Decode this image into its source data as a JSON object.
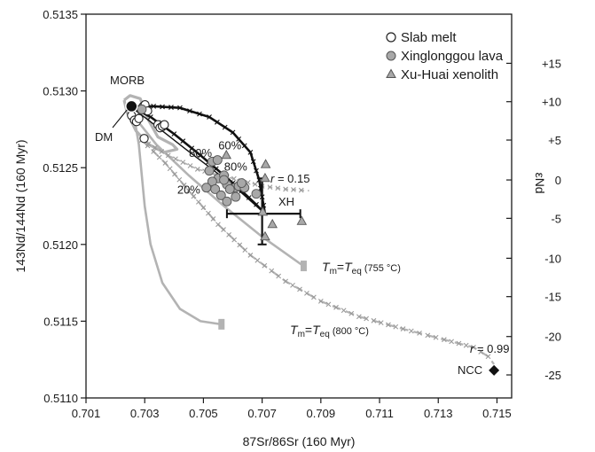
{
  "chart_data": {
    "type": "scatter",
    "xlabel": "87Sr/86Sr (160 Myr)",
    "ylabel": "143Nd/144Nd (160 Myr)",
    "y2label": "εNd",
    "xlim": [
      0.701,
      0.7155
    ],
    "ylim": [
      0.511,
      0.5135
    ],
    "xticks": [
      0.701,
      0.703,
      0.705,
      0.707,
      0.709,
      0.711,
      0.713,
      0.715
    ],
    "xtick_labels": [
      "0.701",
      "0.703",
      "0.705",
      "0.707",
      "0.709",
      "0.711",
      "0.713",
      "0.715"
    ],
    "yticks": [
      0.511,
      0.5115,
      0.512,
      0.5125,
      0.513,
      0.5135
    ],
    "ytick_labels": [
      "0.5110",
      "0.5115",
      "0.5120",
      "0.5125",
      "0.5130",
      "0.5135"
    ],
    "y2ticks": [
      {
        "value": 0.51293,
        "label": "+10"
      },
      {
        "value": 0.51268,
        "label": "+5"
      },
      {
        "value": 0.51242,
        "label": "0"
      },
      {
        "value": 0.51217,
        "label": "-5"
      },
      {
        "value": 0.51191,
        "label": "-10"
      },
      {
        "value": 0.51166,
        "label": "-15"
      },
      {
        "value": 0.5114,
        "label": "-20"
      },
      {
        "value": 0.51115,
        "label": "-25"
      },
      {
        "value": 0.51318,
        "label": "+15"
      }
    ],
    "legend": {
      "placement": "top-right",
      "entries": [
        {
          "name": "Slab melt",
          "marker": "open-circle"
        },
        {
          "name": "Xinglonggou lava",
          "marker": "gray-circle"
        },
        {
          "name": "Xu-Huai xenolith",
          "marker": "gray-triangle"
        }
      ]
    },
    "series": [
      {
        "name": "Slab melt",
        "marker": "open-circle",
        "points": [
          {
            "x": 0.70255,
            "y": 0.51284
          },
          {
            "x": 0.70265,
            "y": 0.51281
          },
          {
            "x": 0.70272,
            "y": 0.5128
          },
          {
            "x": 0.7028,
            "y": 0.51282
          },
          {
            "x": 0.70295,
            "y": 0.5129
          },
          {
            "x": 0.70301,
            "y": 0.51291
          },
          {
            "x": 0.7031,
            "y": 0.51287
          },
          {
            "x": 0.70345,
            "y": 0.51278
          },
          {
            "x": 0.70352,
            "y": 0.51276
          },
          {
            "x": 0.7036,
            "y": 0.51277
          },
          {
            "x": 0.70367,
            "y": 0.51278
          },
          {
            "x": 0.70298,
            "y": 0.51269
          }
        ]
      },
      {
        "name": "Xinglonggou lava",
        "marker": "gray-circle",
        "points": [
          {
            "x": 0.7029,
            "y": 0.51288
          },
          {
            "x": 0.7053,
            "y": 0.51254
          },
          {
            "x": 0.70548,
            "y": 0.51255
          },
          {
            "x": 0.7052,
            "y": 0.51248
          },
          {
            "x": 0.7055,
            "y": 0.51243
          },
          {
            "x": 0.7057,
            "y": 0.51245
          },
          {
            "x": 0.7053,
            "y": 0.51241
          },
          {
            "x": 0.7051,
            "y": 0.51237
          },
          {
            "x": 0.7054,
            "y": 0.51236
          },
          {
            "x": 0.7058,
            "y": 0.51239
          },
          {
            "x": 0.70608,
            "y": 0.51237
          },
          {
            "x": 0.7056,
            "y": 0.51232
          },
          {
            "x": 0.7059,
            "y": 0.51236
          },
          {
            "x": 0.7062,
            "y": 0.51238
          },
          {
            "x": 0.7064,
            "y": 0.51237
          },
          {
            "x": 0.7058,
            "y": 0.51228
          },
          {
            "x": 0.7061,
            "y": 0.51231
          },
          {
            "x": 0.7068,
            "y": 0.51233
          },
          {
            "x": 0.7057,
            "y": 0.51242
          },
          {
            "x": 0.7063,
            "y": 0.5124
          }
        ]
      },
      {
        "name": "Xu-Huai xenolith",
        "marker": "gray-triangle",
        "points": [
          {
            "x": 0.70578,
            "y": 0.51258
          },
          {
            "x": 0.70712,
            "y": 0.51252
          },
          {
            "x": 0.7071,
            "y": 0.51243
          },
          {
            "x": 0.70702,
            "y": 0.51221
          },
          {
            "x": 0.70735,
            "y": 0.51213
          },
          {
            "x": 0.70835,
            "y": 0.51215
          },
          {
            "x": 0.7071,
            "y": 0.51205
          }
        ]
      }
    ],
    "endmembers": [
      {
        "label": "MORB",
        "x": 0.70255,
        "y": 0.5129,
        "marker": "filled-circle"
      },
      {
        "label": "DM",
        "x": 0.70255,
        "y": 0.5129
      },
      {
        "label": "NCC",
        "x": 0.7149,
        "y": 0.51118,
        "marker": "diamond"
      },
      {
        "label": "XH",
        "x": 0.707,
        "y": 0.5122,
        "x_err": [
          0.7058,
          0.7083
        ],
        "y_err": [
          0.512,
          0.51243
        ]
      }
    ],
    "annotations": [
      {
        "text": "60%",
        "x": 0.7059,
        "y": 0.51262
      },
      {
        "text": "80%",
        "x": 0.7049,
        "y": 0.51257
      },
      {
        "text": "80%",
        "x": 0.7061,
        "y": 0.51248
      },
      {
        "text": "20%",
        "x": 0.7045,
        "y": 0.51233
      }
    ],
    "labels": {
      "r_low": "r = 0.15",
      "r_high": "r = 0.99",
      "tm_755": "Tm=Teq (755 °C)",
      "tm_800": "Tm=Teq (800 °C)"
    }
  }
}
